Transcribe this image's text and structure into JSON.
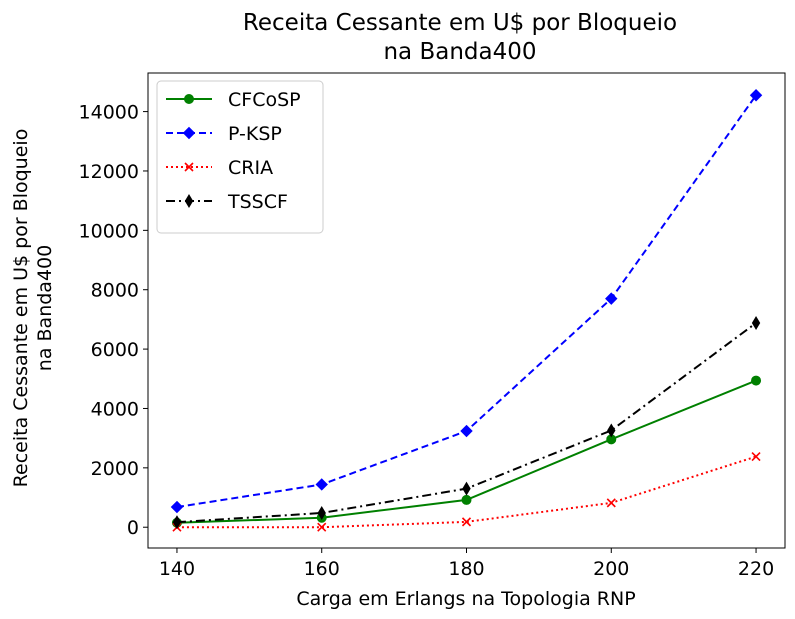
{
  "chart_data": {
    "type": "line",
    "title_lines": [
      "Receita Cessante em U$ por Bloqueio",
      "na Banda400"
    ],
    "xlabel": "Carga em Erlangs na Topologia RNP",
    "ylabel_lines": [
      "Receita Cessante em U$ por Bloqueio",
      "na Banda400"
    ],
    "x": [
      140,
      160,
      180,
      200,
      220
    ],
    "xlim": [
      136,
      224
    ],
    "ylim": [
      -700,
      15300
    ],
    "xticks": [
      140,
      160,
      180,
      200,
      220
    ],
    "yticks": [
      0,
      2000,
      4000,
      6000,
      8000,
      10000,
      12000,
      14000
    ],
    "grid": false,
    "legend_position": "top-left",
    "series": [
      {
        "name": "CFCoSP",
        "color": "#008000",
        "dash": "solid",
        "marker": "circle",
        "values": [
          150,
          320,
          920,
          2960,
          4940
        ]
      },
      {
        "name": "P-KSP",
        "color": "#0000ff",
        "dash": "dashed",
        "marker": "diamond",
        "values": [
          680,
          1440,
          3240,
          7700,
          14550
        ]
      },
      {
        "name": "CRIA",
        "color": "#ff0000",
        "dash": "dotted",
        "marker": "x",
        "values": [
          0,
          0,
          180,
          820,
          2380
        ]
      },
      {
        "name": "TSSCF",
        "color": "#000000",
        "dash": "dashdot",
        "marker": "thin-diamond",
        "values": [
          170,
          480,
          1300,
          3260,
          6880
        ]
      }
    ]
  }
}
